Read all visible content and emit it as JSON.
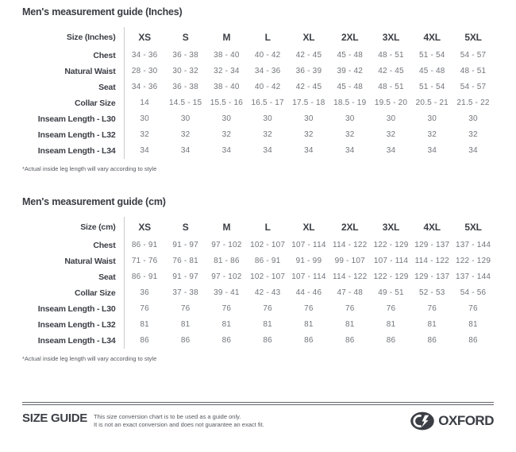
{
  "colors": {
    "text_dark": "#3b3e45",
    "text_value_gray": "#71757b",
    "divider": "#c9cbce",
    "rule": "#60636a",
    "background": "#ffffff"
  },
  "tables": [
    {
      "title": "Men's measurement guide (Inches)",
      "header": [
        "Size (Inches)",
        "XS",
        "S",
        "M",
        "L",
        "XL",
        "2XL",
        "3XL",
        "4XL",
        "5XL"
      ],
      "rows": [
        {
          "label": "Chest",
          "values": [
            "34 - 36",
            "36 - 38",
            "38 - 40",
            "40 - 42",
            "42 - 45",
            "45 - 48",
            "48 - 51",
            "51 - 54",
            "54 - 57"
          ]
        },
        {
          "label": "Natural Waist",
          "values": [
            "28 - 30",
            "30 - 32",
            "32 - 34",
            "34 - 36",
            "36 - 39",
            "39 - 42",
            "42 - 45",
            "45 - 48",
            "48 - 51"
          ]
        },
        {
          "label": "Seat",
          "values": [
            "34 - 36",
            "36 - 38",
            "38 - 40",
            "40 - 42",
            "42 - 45",
            "45 - 48",
            "48 - 51",
            "51 - 54",
            "54 - 57"
          ]
        },
        {
          "label": "Collar Size",
          "values": [
            "14",
            "14.5 - 15",
            "15.5 - 16",
            "16.5 - 17",
            "17.5 - 18",
            "18.5 - 19",
            "19.5 - 20",
            "20.5 - 21",
            "21.5 - 22"
          ]
        },
        {
          "label": "Inseam Length - L30",
          "values": [
            "30",
            "30",
            "30",
            "30",
            "30",
            "30",
            "30",
            "30",
            "30"
          ]
        },
        {
          "label": "Inseam Length - L32",
          "values": [
            "32",
            "32",
            "32",
            "32",
            "32",
            "32",
            "32",
            "32",
            "32"
          ]
        },
        {
          "label": "Inseam Length - L34",
          "values": [
            "34",
            "34",
            "34",
            "34",
            "34",
            "34",
            "34",
            "34",
            "34"
          ]
        }
      ],
      "footnote": "*Actual inside leg length will vary according to style"
    },
    {
      "title": "Men's measurement guide (cm)",
      "header": [
        "Size (cm)",
        "XS",
        "S",
        "M",
        "L",
        "XL",
        "2XL",
        "3XL",
        "4XL",
        "5XL"
      ],
      "rows": [
        {
          "label": "Chest",
          "values": [
            "86 - 91",
            "91 - 97",
            "97 - 102",
            "102 - 107",
            "107 - 114",
            "114 - 122",
            "122 - 129",
            "129 - 137",
            "137 - 144"
          ]
        },
        {
          "label": "Natural Waist",
          "values": [
            "71 - 76",
            "76 - 81",
            "81 - 86",
            "86 - 91",
            "91 - 99",
            "99 - 107",
            "107 - 114",
            "114 - 122",
            "122 - 129"
          ]
        },
        {
          "label": "Seat",
          "values": [
            "86 - 91",
            "91 - 97",
            "97 - 102",
            "102 - 107",
            "107 - 114",
            "114 - 122",
            "122 - 129",
            "129 - 137",
            "137 - 144"
          ]
        },
        {
          "label": "Collar Size",
          "values": [
            "36",
            "37 - 38",
            "39 - 41",
            "42 - 43",
            "44 - 46",
            "47 - 48",
            "49 - 51",
            "52 - 53",
            "54 - 56"
          ]
        },
        {
          "label": "Inseam Length - L30",
          "values": [
            "76",
            "76",
            "76",
            "76",
            "76",
            "76",
            "76",
            "76",
            "76"
          ]
        },
        {
          "label": "Inseam Length - L32",
          "values": [
            "81",
            "81",
            "81",
            "81",
            "81",
            "81",
            "81",
            "81",
            "81"
          ]
        },
        {
          "label": "Inseam Length - L34",
          "values": [
            "86",
            "86",
            "86",
            "86",
            "86",
            "86",
            "86",
            "86",
            "86"
          ]
        }
      ],
      "footnote": "*Actual inside leg length will vary according to style"
    }
  ],
  "footer": {
    "title": "SIZE GUIDE",
    "note_line1": "This size conversion chart is to be used as a guide only.",
    "note_line2": "It is not an exact conversion and does not guarantee an exact fit.",
    "brand": "OXFORD"
  }
}
